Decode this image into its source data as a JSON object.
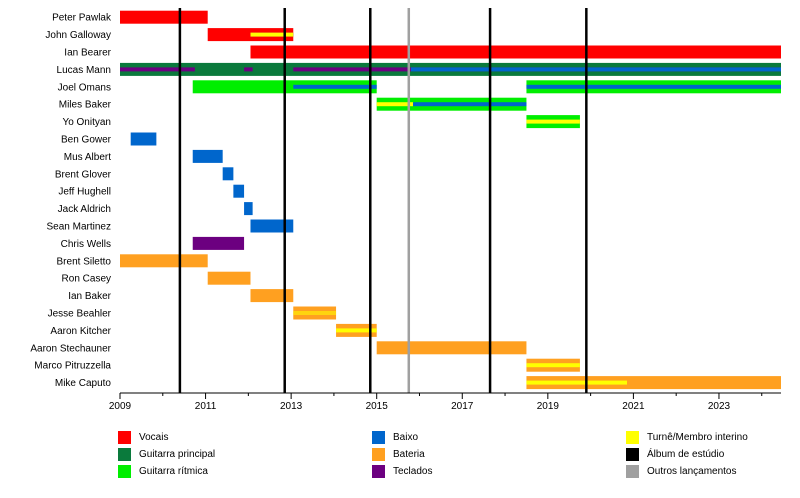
{
  "chart_data": {
    "type": "timeline",
    "title": "",
    "x_range": [
      2009,
      2024.45
    ],
    "x_ticks": [
      "2009",
      "2011",
      "2013",
      "2015",
      "2017",
      "2019",
      "2021",
      "2023"
    ],
    "colors": {
      "vocals": "#ff0000",
      "lead_guitar": "#0a7a3c",
      "rhythm_guitar": "#00ee00",
      "bass": "#0066cc",
      "drums": "#ffa020",
      "keyboards": "#6c0080",
      "touring": "#ffff00",
      "studio_album": "#000000",
      "other_release": "#a0a0a0"
    },
    "members": [
      {
        "name": "Peter Pawlak",
        "bars": [
          {
            "role": "vocals",
            "start": 2009.0,
            "end": 2011.05
          }
        ]
      },
      {
        "name": "John Galloway",
        "bars": [
          {
            "role": "vocals",
            "start": 2011.05,
            "end": 2013.05,
            "overlays": [
              {
                "role": "keyboards",
                "start": 2012.05,
                "end": 2013.05
              },
              {
                "role": "touring",
                "start": 2012.05,
                "end": 2013.05
              }
            ]
          }
        ]
      },
      {
        "name": "Ian Bearer",
        "bars": [
          {
            "role": "vocals",
            "start": 2012.05,
            "end": 2024.45
          }
        ]
      },
      {
        "name": "Lucas Mann",
        "bars": [
          {
            "role": "lead_guitar",
            "start": 2009.0,
            "end": 2024.45,
            "overlays": [
              {
                "role": "keyboards",
                "start": 2009.0,
                "end": 2010.75
              },
              {
                "role": "keyboards",
                "start": 2011.9,
                "end": 2012.1
              },
              {
                "role": "keyboards",
                "start": 2013.05,
                "end": 2024.45
              },
              {
                "role": "bass",
                "start": 2015.8,
                "end": 2024.45
              }
            ]
          }
        ]
      },
      {
        "name": "Joel Omans",
        "bars": [
          {
            "role": "rhythm_guitar",
            "start": 2010.7,
            "end": 2015.0,
            "overlays": [
              {
                "role": "bass",
                "start": 2013.05,
                "end": 2015.0
              }
            ]
          },
          {
            "role": "rhythm_guitar",
            "start": 2018.5,
            "end": 2024.45,
            "overlays": [
              {
                "role": "bass",
                "start": 2018.5,
                "end": 2024.45
              }
            ]
          }
        ]
      },
      {
        "name": "Miles Baker",
        "bars": [
          {
            "role": "rhythm_guitar",
            "start": 2015.0,
            "end": 2018.5,
            "overlays": [
              {
                "role": "touring",
                "start": 2015.0,
                "end": 2015.85
              },
              {
                "role": "bass",
                "start": 2015.85,
                "end": 2018.5
              }
            ]
          }
        ]
      },
      {
        "name": "Yo Onityan",
        "bars": [
          {
            "role": "rhythm_guitar",
            "start": 2018.5,
            "end": 2019.75,
            "overlays": [
              {
                "role": "touring",
                "start": 2018.5,
                "end": 2019.75
              }
            ]
          }
        ]
      },
      {
        "name": "Ben Gower",
        "bars": [
          {
            "role": "bass",
            "start": 2009.25,
            "end": 2009.85
          }
        ]
      },
      {
        "name": "Mus Albert",
        "bars": [
          {
            "role": "bass",
            "start": 2010.7,
            "end": 2011.4
          }
        ]
      },
      {
        "name": "Brent Glover",
        "bars": [
          {
            "role": "bass",
            "start": 2011.4,
            "end": 2011.65
          }
        ]
      },
      {
        "name": "Jeff Hughell",
        "bars": [
          {
            "role": "bass",
            "start": 2011.65,
            "end": 2011.9
          }
        ]
      },
      {
        "name": "Jack Aldrich",
        "bars": [
          {
            "role": "bass",
            "start": 2011.9,
            "end": 2012.1
          }
        ]
      },
      {
        "name": "Sean Martinez",
        "bars": [
          {
            "role": "bass",
            "start": 2012.05,
            "end": 2013.05
          }
        ]
      },
      {
        "name": "Chris Wells",
        "bars": [
          {
            "role": "keyboards",
            "start": 2010.7,
            "end": 2011.9
          }
        ]
      },
      {
        "name": "Brent Siletto",
        "bars": [
          {
            "role": "drums",
            "start": 2009.0,
            "end": 2011.05
          }
        ]
      },
      {
        "name": "Ron Casey",
        "bars": [
          {
            "role": "drums",
            "start": 2011.05,
            "end": 2012.05
          }
        ]
      },
      {
        "name": "Ian Baker",
        "bars": [
          {
            "role": "drums",
            "start": 2012.05,
            "end": 2013.05
          }
        ]
      },
      {
        "name": "Jesse Beahler",
        "bars": [
          {
            "role": "drums",
            "start": 2013.05,
            "end": 2014.05,
            "overlays": [
              {
                "role": "touring",
                "start": 2013.05,
                "end": 2014.05,
                "faded": true
              }
            ]
          }
        ]
      },
      {
        "name": "Aaron Kitcher",
        "bars": [
          {
            "role": "drums",
            "start": 2014.05,
            "end": 2015.0,
            "overlays": [
              {
                "role": "touring",
                "start": 2014.05,
                "end": 2015.0
              }
            ]
          }
        ]
      },
      {
        "name": "Aaron Stechauner",
        "bars": [
          {
            "role": "drums",
            "start": 2015.0,
            "end": 2018.5
          }
        ]
      },
      {
        "name": "Marco Pitruzzella",
        "bars": [
          {
            "role": "drums",
            "start": 2018.5,
            "end": 2019.75,
            "overlays": [
              {
                "role": "touring",
                "start": 2018.5,
                "end": 2019.75
              }
            ]
          }
        ]
      },
      {
        "name": "Mike Caputo",
        "bars": [
          {
            "role": "drums",
            "start": 2018.5,
            "end": 2024.45,
            "overlays": [
              {
                "role": "touring",
                "start": 2018.5,
                "end": 2020.85
              }
            ]
          }
        ]
      }
    ],
    "studio_albums": [
      2010.4,
      2012.85,
      2014.85,
      2017.65,
      2019.9
    ],
    "other_releases": [
      2015.75
    ]
  },
  "legend": [
    {
      "key": "vocals",
      "label": "Vocais",
      "color": "#ff0000"
    },
    {
      "key": "lead_guitar",
      "label": "Guitarra principal",
      "color": "#0a7a3c"
    },
    {
      "key": "rhythm_guitar",
      "label": "Guitarra rítmica",
      "color": "#00ee00"
    },
    {
      "key": "bass",
      "label": "Baixo",
      "color": "#0066cc"
    },
    {
      "key": "drums",
      "label": "Bateria",
      "color": "#ffa020"
    },
    {
      "key": "keyboards",
      "label": "Teclados",
      "color": "#6c0080"
    },
    {
      "key": "touring",
      "label": "Turnê/Membro interino",
      "color": "#ffff00"
    },
    {
      "key": "studio_album",
      "label": "Álbum de estúdio",
      "color": "#000000"
    },
    {
      "key": "other_release",
      "label": "Outros lançamentos",
      "color": "#a0a0a0"
    }
  ]
}
